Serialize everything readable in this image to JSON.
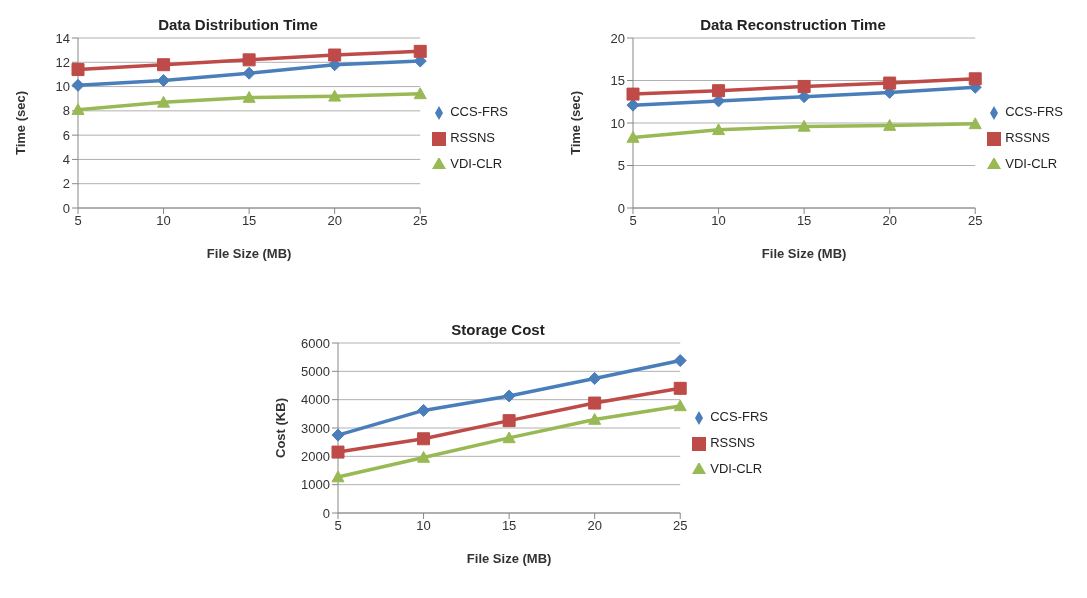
{
  "chart_data": [
    {
      "type": "line",
      "title": "Data Distribution Time",
      "xlabel": "File Size (MB)",
      "ylabel": "Time (sec)",
      "categories": [
        "5",
        "10",
        "15",
        "20",
        "25"
      ],
      "ylim": [
        0,
        14
      ],
      "yticks": [
        0,
        2,
        4,
        6,
        8,
        10,
        12,
        14
      ],
      "grid": "y",
      "legend": "right",
      "series": [
        {
          "name": "CCS-FRS",
          "color": "#4a7ebb",
          "marker": "diamond",
          "values": [
            10.1,
            10.5,
            11.1,
            11.8,
            12.1
          ]
        },
        {
          "name": "RSSNS",
          "color": "#be4b48",
          "marker": "square",
          "values": [
            11.4,
            11.8,
            12.2,
            12.6,
            12.9
          ]
        },
        {
          "name": "VDI-CLR",
          "color": "#98b954",
          "marker": "triangle",
          "values": [
            8.1,
            8.7,
            9.1,
            9.2,
            9.4
          ]
        }
      ]
    },
    {
      "type": "line",
      "title": "Data Reconstruction Time",
      "xlabel": "File Size (MB)",
      "ylabel": "Time (sec)",
      "categories": [
        "5",
        "10",
        "15",
        "20",
        "25"
      ],
      "ylim": [
        0,
        20
      ],
      "yticks": [
        0,
        5,
        10,
        15,
        20
      ],
      "grid": "y",
      "legend": "right",
      "series": [
        {
          "name": "CCS-FRS",
          "color": "#4a7ebb",
          "marker": "diamond",
          "values": [
            12.1,
            12.6,
            13.1,
            13.6,
            14.2
          ]
        },
        {
          "name": "RSSNS",
          "color": "#be4b48",
          "marker": "square",
          "values": [
            13.4,
            13.8,
            14.3,
            14.7,
            15.2
          ]
        },
        {
          "name": "VDI-CLR",
          "color": "#98b954",
          "marker": "triangle",
          "values": [
            8.3,
            9.2,
            9.6,
            9.7,
            9.9
          ]
        }
      ]
    },
    {
      "type": "line",
      "title": "Storage Cost",
      "xlabel": "File Size (MB)",
      "ylabel": "Cost (KB)",
      "categories": [
        "5",
        "10",
        "15",
        "20",
        "25"
      ],
      "ylim": [
        0,
        6000
      ],
      "yticks": [
        0,
        1000,
        2000,
        3000,
        4000,
        5000,
        6000
      ],
      "grid": "y",
      "legend": "right",
      "series": [
        {
          "name": "CCS-FRS",
          "color": "#4a7ebb",
          "marker": "diamond",
          "values": [
            2750,
            3620,
            4130,
            4750,
            5380
          ]
        },
        {
          "name": "RSSNS",
          "color": "#be4b48",
          "marker": "square",
          "values": [
            2150,
            2620,
            3260,
            3880,
            4400
          ]
        },
        {
          "name": "VDI-CLR",
          "color": "#98b954",
          "marker": "triangle",
          "values": [
            1270,
            1960,
            2650,
            3300,
            3780
          ]
        }
      ]
    }
  ]
}
